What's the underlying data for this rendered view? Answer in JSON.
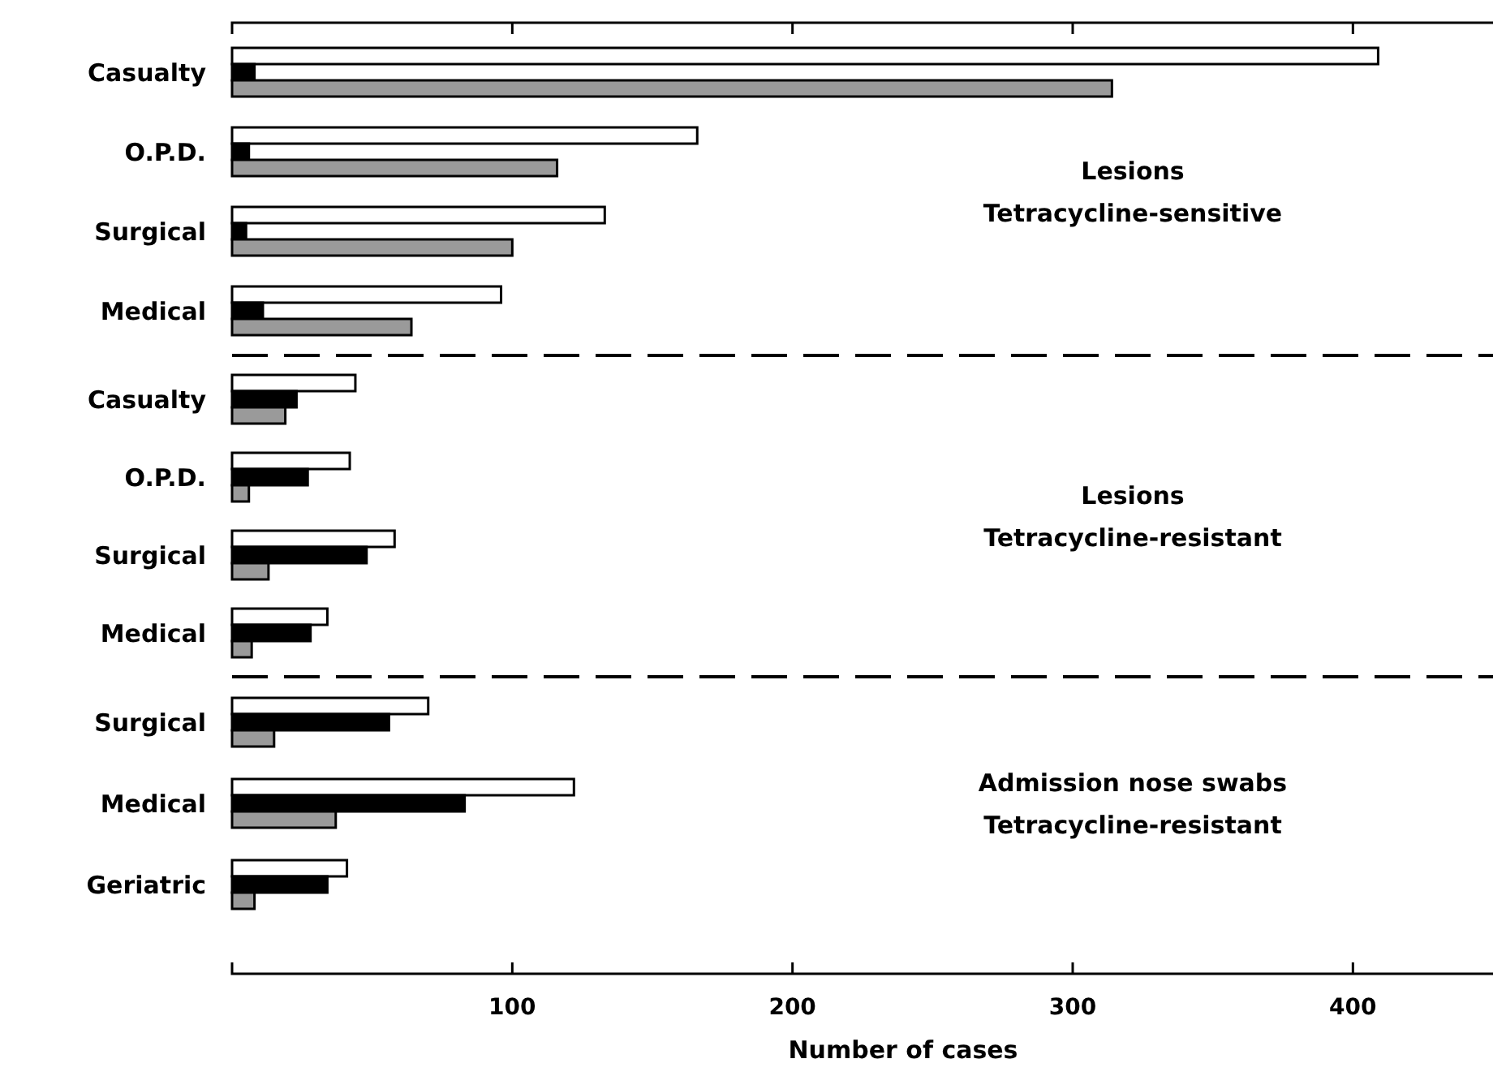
{
  "chart_data": [
    {
      "type": "bar",
      "orientation": "horizontal",
      "categories": [
        "Casualty",
        "O.P.D.",
        "Surgical",
        "Medical"
      ],
      "series": [
        {
          "color": "#ffffff",
          "values": [
            409,
            166,
            133,
            96
          ]
        },
        {
          "color": "#000000",
          "values": [
            8,
            6,
            5,
            11
          ]
        },
        {
          "color": "#9a9a9a",
          "values": [
            314,
            116,
            100,
            64
          ]
        }
      ],
      "xlim": [
        0,
        450
      ],
      "xticks": [
        {
          "value": 100,
          "label": null
        },
        {
          "value": 200,
          "label": null
        },
        {
          "value": 300,
          "label": null
        },
        {
          "value": 400,
          "label": null
        }
      ],
      "tick_labels": "y",
      "annotations": [
        "Lesions\nTetracycline-sensitive"
      ]
    },
    {
      "type": "bar",
      "orientation": "horizontal",
      "categories": [
        "Casualty",
        "O.P.D.",
        "Surgical",
        "Medical"
      ],
      "series": [
        {
          "color": "#ffffff",
          "values": [
            44,
            42,
            58,
            34
          ]
        },
        {
          "color": "#000000",
          "values": [
            23,
            27,
            48,
            28
          ]
        },
        {
          "color": "#9a9a9a",
          "values": [
            19,
            6,
            13,
            7
          ]
        }
      ],
      "xlim": [
        0,
        450
      ],
      "tick_labels": "y",
      "annotations": [
        "Lesions\nTetracycline-resistant"
      ]
    },
    {
      "type": "bar",
      "orientation": "horizontal",
      "categories": [
        "Surgical",
        "Medical",
        "Geriatric"
      ],
      "series": [
        {
          "color": "#ffffff",
          "values": [
            70,
            122,
            41
          ]
        },
        {
          "color": "#000000",
          "values": [
            56,
            83,
            34
          ]
        },
        {
          "color": "#9a9a9a",
          "values": [
            15,
            37,
            8
          ]
        }
      ],
      "xlim": [
        0,
        450
      ],
      "xticks": [
        100,
        200,
        300,
        400
      ],
      "xlabel": "Number of cases",
      "annotations": [
        "Admission nose swabs\nTetracycline-resistant"
      ]
    }
  ]
}
